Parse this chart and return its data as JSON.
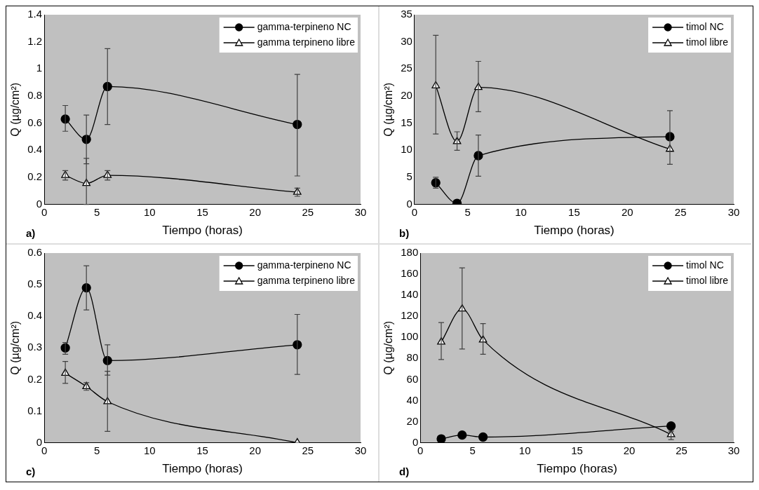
{
  "chart_data": [
    {
      "type": "line",
      "xlabel": "Tiempo (horas)",
      "ylabel": "Q (µg/cm²)",
      "annotations": [
        "a)"
      ],
      "xlim": [
        0,
        30
      ],
      "xticks": [
        0,
        5,
        10,
        15,
        20,
        25,
        30
      ],
      "ylim": [
        0,
        1.4
      ],
      "yticks": [
        0,
        0.2,
        0.4,
        0.6,
        0.8,
        1,
        1.2,
        1.4
      ],
      "grid": false,
      "legend": "top right",
      "x": [
        2,
        4,
        6,
        24
      ],
      "series": [
        {
          "name": "gamma-terpineno NC",
          "color": "#000000",
          "marker": "circle",
          "values": [
            0.63,
            0.48,
            0.87,
            0.59
          ],
          "errors": [
            [
              0.54,
              0.73
            ],
            [
              0.3,
              0.66
            ],
            [
              0.59,
              1.15
            ],
            [
              0.21,
              0.96
            ]
          ]
        },
        {
          "name": "gamma terpineno libre",
          "color": "#000000",
          "marker": "triangle",
          "values": [
            0.215,
            0.155,
            0.215,
            0.09
          ],
          "errors": [
            [
              0.18,
              0.25
            ],
            [
              0,
              0.34
            ],
            [
              0.18,
              0.25
            ],
            [
              0.06,
              0.12
            ]
          ]
        }
      ]
    },
    {
      "type": "line",
      "xlabel": "Tiempo (horas)",
      "ylabel": "Q (µg/cm²)",
      "annotations": [
        "b)"
      ],
      "xlim": [
        0,
        30
      ],
      "xticks": [
        0,
        5,
        10,
        15,
        20,
        25,
        30
      ],
      "ylim": [
        0,
        35
      ],
      "yticks": [
        0,
        5,
        10,
        15,
        20,
        25,
        30,
        35
      ],
      "grid": false,
      "legend": "top right",
      "x": [
        2,
        4,
        6,
        24
      ],
      "series": [
        {
          "name": "timol NC",
          "color": "#000000",
          "marker": "circle",
          "values": [
            4,
            0.2,
            9,
            12.5
          ],
          "errors": [
            [
              3,
              5
            ],
            null,
            [
              5.2,
              12.8
            ],
            null
          ]
        },
        {
          "name": "timol libre",
          "color": "#000000",
          "marker": "triangle",
          "values": [
            21.9,
            11.6,
            21.6,
            10.2
          ],
          "errors": [
            [
              13,
              31.2
            ],
            [
              10,
              13.4
            ],
            [
              17.1,
              26.4
            ],
            [
              7.4,
              17.3
            ]
          ]
        }
      ]
    },
    {
      "type": "line",
      "xlabel": "Tiempo (horas)",
      "ylabel": "Q (µg/cm²)",
      "annotations": [
        "c)"
      ],
      "xlim": [
        0,
        30
      ],
      "xticks": [
        0,
        5,
        10,
        15,
        20,
        25,
        30
      ],
      "ylim": [
        0,
        0.6
      ],
      "yticks": [
        0,
        0.1,
        0.2,
        0.3,
        0.4,
        0.5,
        0.6
      ],
      "grid": false,
      "legend": "top right",
      "x": [
        2,
        4,
        6,
        24
      ],
      "series": [
        {
          "name": "gamma-terpineno NC",
          "color": "#000000",
          "marker": "circle",
          "values": [
            0.3,
            0.49,
            0.26,
            0.31
          ],
          "errors": [
            [
              0.28,
              0.317
            ],
            [
              0.42,
              0.56
            ],
            [
              0.214,
              0.31
            ],
            [
              0.216,
              0.406
            ]
          ]
        },
        {
          "name": "gamma terpineno libre",
          "color": "#000000",
          "marker": "triangle",
          "values": [
            0.22,
            0.178,
            0.13,
            0
          ],
          "errors": [
            [
              0.188,
              0.257
            ],
            [
              0.166,
              0.19
            ],
            [
              0.036,
              0.226
            ],
            null
          ]
        }
      ]
    },
    {
      "type": "line",
      "xlabel": "Tiempo (horas)",
      "ylabel": "Q (µg/cm²)",
      "annotations": [
        "d)"
      ],
      "xlim": [
        0,
        30
      ],
      "xticks": [
        0,
        5,
        10,
        15,
        20,
        25,
        30
      ],
      "ylim": [
        0,
        180
      ],
      "yticks": [
        0,
        20,
        40,
        60,
        80,
        100,
        120,
        140,
        160,
        180
      ],
      "grid": false,
      "legend": "top right",
      "x": [
        2,
        4,
        6,
        24
      ],
      "series": [
        {
          "name": "timol NC",
          "color": "#000000",
          "marker": "circle",
          "values": [
            3.7,
            7.3,
            5.4,
            15.9
          ]
        },
        {
          "name": "timol libre",
          "color": "#000000",
          "marker": "triangle",
          "values": [
            95.6,
            127,
            97.6,
            7.8
          ],
          "errors": [
            [
              79,
              114
            ],
            [
              89,
              166
            ],
            [
              84,
              113
            ],
            [
              3,
              11
            ]
          ]
        }
      ]
    }
  ]
}
